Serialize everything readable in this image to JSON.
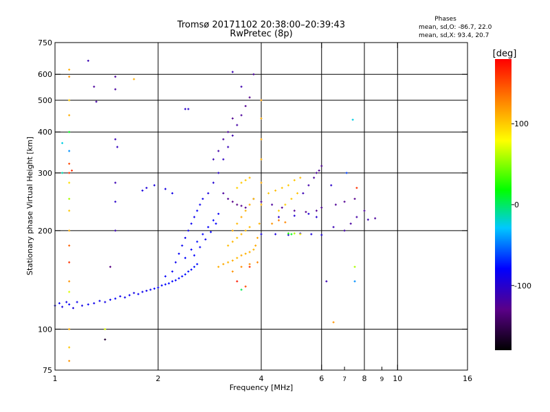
{
  "chart_data": {
    "type": "scatter",
    "title": "Tromsø 20171102 20:38:00–20:39:43",
    "subtitle": "RwPretec (8p)",
    "xlabel": "Frequency [MHz]",
    "ylabel": "Stationary phase Virtual Height [km]",
    "x_scale": "log",
    "y_scale": "log",
    "xlim": [
      1,
      16
    ],
    "ylim": [
      75,
      750
    ],
    "x_ticks": [
      1,
      2,
      4,
      6,
      8,
      10,
      16
    ],
    "x_minor_ticks": [
      7,
      9
    ],
    "y_ticks": [
      75,
      100,
      200,
      300,
      400,
      500,
      600,
      750
    ],
    "grid": true,
    "stats": {
      "heading": "Phases",
      "line_o": "mean, sd,O: -86.7, 22.0",
      "line_x": "mean, sd,X:  93.4, 20.7"
    },
    "colorbar": {
      "label": "[deg]",
      "range": [
        -180,
        180
      ],
      "ticks": [
        100,
        0,
        -100
      ],
      "colors": [
        "#000000",
        "#5a0088",
        "#0000ff",
        "#00c8ff",
        "#00ff00",
        "#ffff00",
        "#ff8000",
        "#ff0000"
      ]
    },
    "series": [
      {
        "points": [
          [
            1.0,
            118,
            -85
          ],
          [
            1.03,
            120,
            -82
          ],
          [
            1.05,
            117,
            -90
          ],
          [
            1.08,
            121,
            -86
          ],
          [
            1.1,
            119,
            -80
          ],
          [
            1.13,
            116,
            -92
          ],
          [
            1.16,
            121,
            -84
          ],
          [
            1.2,
            118,
            -88
          ],
          [
            1.25,
            119,
            -82
          ],
          [
            1.3,
            120,
            -86
          ],
          [
            1.35,
            122,
            -84
          ],
          [
            1.4,
            121,
            -88
          ],
          [
            1.45,
            123,
            -82
          ],
          [
            1.5,
            124,
            -80
          ],
          [
            1.55,
            126,
            -84
          ],
          [
            1.6,
            125,
            -86
          ],
          [
            1.65,
            127,
            -82
          ],
          [
            1.7,
            129,
            -88
          ],
          [
            1.75,
            128,
            -80
          ],
          [
            1.8,
            130,
            -84
          ],
          [
            1.85,
            131,
            -86
          ],
          [
            1.9,
            132,
            -82
          ],
          [
            1.95,
            133,
            -78
          ],
          [
            2.0,
            134,
            -80
          ],
          [
            2.05,
            136,
            -76
          ],
          [
            2.1,
            137,
            -78
          ],
          [
            2.15,
            138,
            -74
          ],
          [
            2.2,
            140,
            -76
          ],
          [
            2.25,
            141,
            -78
          ],
          [
            2.3,
            143,
            -74
          ],
          [
            2.35,
            145,
            -76
          ],
          [
            2.4,
            147,
            -72
          ],
          [
            2.45,
            150,
            -74
          ],
          [
            2.5,
            152,
            -76
          ],
          [
            2.55,
            155,
            -72
          ],
          [
            2.6,
            158,
            -74
          ],
          [
            2.1,
            145,
            -80
          ],
          [
            2.2,
            150,
            -82
          ],
          [
            2.25,
            160,
            -84
          ],
          [
            2.3,
            170,
            -80
          ],
          [
            2.35,
            180,
            -82
          ],
          [
            2.4,
            190,
            -84
          ],
          [
            2.45,
            200,
            -86
          ],
          [
            2.5,
            210,
            -82
          ],
          [
            2.55,
            220,
            -84
          ],
          [
            2.6,
            230,
            -80
          ],
          [
            2.65,
            240,
            -84
          ],
          [
            2.7,
            250,
            -86
          ],
          [
            2.4,
            165,
            -76
          ],
          [
            2.5,
            175,
            -78
          ],
          [
            2.6,
            185,
            -74
          ],
          [
            2.7,
            195,
            -78
          ],
          [
            2.8,
            205,
            -80
          ],
          [
            2.9,
            215,
            -76
          ],
          [
            2.55,
            168,
            -78
          ],
          [
            2.65,
            178,
            -80
          ],
          [
            2.75,
            188,
            -82
          ],
          [
            2.85,
            198,
            -78
          ],
          [
            2.95,
            210,
            -80
          ],
          [
            3.0,
            225,
            -82
          ],
          [
            2.2,
            260,
            -88
          ],
          [
            2.1,
            268,
            -90
          ],
          [
            1.95,
            275,
            -92
          ],
          [
            1.85,
            270,
            -94
          ],
          [
            1.8,
            265,
            -90
          ],
          [
            2.8,
            260,
            -92
          ],
          [
            2.9,
            280,
            -96
          ],
          [
            3.0,
            300,
            -100
          ],
          [
            3.1,
            330,
            -104
          ],
          [
            3.2,
            360,
            -108
          ],
          [
            3.3,
            390,
            -112
          ],
          [
            3.4,
            420,
            -116
          ],
          [
            3.5,
            450,
            -120
          ],
          [
            3.6,
            480,
            -124
          ],
          [
            3.7,
            510,
            -126
          ],
          [
            2.9,
            330,
            -110
          ],
          [
            3.0,
            350,
            -114
          ],
          [
            3.1,
            380,
            -118
          ],
          [
            3.2,
            400,
            -120
          ],
          [
            3.3,
            440,
            -124
          ],
          [
            3.1,
            260,
            -120
          ],
          [
            3.2,
            250,
            -124
          ],
          [
            3.3,
            245,
            -128
          ],
          [
            3.4,
            240,
            -130
          ],
          [
            3.5,
            238,
            -126
          ],
          [
            3.6,
            235,
            -124
          ],
          [
            3.8,
            250,
            -120
          ],
          [
            4.0,
            245,
            -118
          ],
          [
            4.3,
            240,
            -120
          ],
          [
            4.6,
            235,
            -122
          ],
          [
            5.0,
            230,
            -124
          ],
          [
            5.4,
            228,
            -126
          ],
          [
            5.8,
            230,
            -124
          ],
          [
            6.0,
            235,
            -122
          ],
          [
            4.5,
            220,
            -100
          ],
          [
            5.0,
            222,
            -96
          ],
          [
            5.5,
            225,
            -94
          ],
          [
            5.8,
            220,
            -98
          ],
          [
            5.3,
            260,
            -110
          ],
          [
            5.5,
            275,
            -114
          ],
          [
            5.7,
            290,
            -118
          ],
          [
            5.9,
            305,
            -122
          ],
          [
            6.0,
            315,
            -124
          ],
          [
            5.8,
            300,
            -120
          ],
          [
            4.0,
            195,
            -90
          ],
          [
            4.4,
            195,
            -92
          ],
          [
            4.8,
            194,
            -94
          ],
          [
            5.2,
            196,
            -90
          ],
          [
            5.6,
            195,
            -92
          ],
          [
            6.0,
            194,
            -94
          ],
          [
            6.5,
            205,
            -110
          ],
          [
            7.0,
            200,
            -115
          ],
          [
            7.3,
            210,
            -118
          ],
          [
            7.6,
            220,
            -116
          ],
          [
            8.0,
            230,
            -120
          ],
          [
            6.6,
            240,
            -122
          ],
          [
            7.0,
            245,
            -124
          ],
          [
            7.5,
            250,
            -126
          ],
          [
            6.4,
            275,
            -100
          ],
          [
            7.6,
            270,
            160
          ],
          [
            3.0,
            155,
            110
          ],
          [
            3.1,
            158,
            112
          ],
          [
            3.2,
            160,
            108
          ],
          [
            3.3,
            162,
            110
          ],
          [
            3.4,
            165,
            106
          ],
          [
            3.5,
            168,
            112
          ],
          [
            3.6,
            170,
            108
          ],
          [
            3.7,
            172,
            110
          ],
          [
            3.8,
            175,
            106
          ],
          [
            3.85,
            180,
            112
          ],
          [
            3.9,
            190,
            114
          ],
          [
            3.95,
            210,
            110
          ],
          [
            4.0,
            240,
            108
          ],
          [
            4.0,
            280,
            112
          ],
          [
            4.0,
            330,
            110
          ],
          [
            4.0,
            380,
            114
          ],
          [
            4.0,
            440,
            112
          ],
          [
            4.0,
            500,
            116
          ],
          [
            3.2,
            180,
            104
          ],
          [
            3.3,
            185,
            106
          ],
          [
            3.4,
            190,
            102
          ],
          [
            3.5,
            195,
            108
          ],
          [
            3.6,
            200,
            104
          ],
          [
            3.7,
            205,
            106
          ],
          [
            3.3,
            200,
            110
          ],
          [
            3.4,
            210,
            106
          ],
          [
            3.5,
            220,
            112
          ],
          [
            3.6,
            230,
            108
          ],
          [
            3.7,
            240,
            110
          ],
          [
            3.8,
            250,
            104
          ],
          [
            3.3,
            150,
            120
          ],
          [
            3.5,
            155,
            124
          ],
          [
            3.7,
            158,
            122
          ],
          [
            3.9,
            160,
            126
          ],
          [
            3.4,
            270,
            96
          ],
          [
            3.5,
            280,
            100
          ],
          [
            3.6,
            285,
            98
          ],
          [
            3.7,
            290,
            104
          ],
          [
            4.2,
            260,
            100
          ],
          [
            4.4,
            265,
            104
          ],
          [
            4.6,
            270,
            102
          ],
          [
            4.8,
            275,
            98
          ],
          [
            5.0,
            285,
            100
          ],
          [
            5.2,
            290,
            104
          ],
          [
            4.5,
            230,
            96
          ],
          [
            4.7,
            240,
            98
          ],
          [
            4.9,
            250,
            100
          ],
          [
            5.1,
            260,
            102
          ],
          [
            4.8,
            196,
            30
          ],
          [
            4.9,
            195,
            20
          ],
          [
            5.0,
            196,
            60
          ],
          [
            5.2,
            195,
            80
          ],
          [
            4.3,
            210,
            120
          ],
          [
            4.5,
            215,
            130
          ],
          [
            4.7,
            212,
            126
          ],
          [
            1.1,
            620,
            110
          ],
          [
            1.1,
            590,
            120
          ],
          [
            1.1,
            500,
            100
          ],
          [
            1.1,
            450,
            110
          ],
          [
            1.1,
            400,
            20
          ],
          [
            1.1,
            350,
            -40
          ],
          [
            1.1,
            320,
            150
          ],
          [
            1.1,
            300,
            160
          ],
          [
            1.1,
            280,
            90
          ],
          [
            1.1,
            250,
            60
          ],
          [
            1.1,
            230,
            100
          ],
          [
            1.1,
            200,
            110
          ],
          [
            1.1,
            180,
            140
          ],
          [
            1.1,
            160,
            160
          ],
          [
            1.1,
            140,
            120
          ],
          [
            1.1,
            130,
            70
          ],
          [
            1.1,
            100,
            110
          ],
          [
            1.1,
            88,
            100
          ],
          [
            1.1,
            80,
            120
          ],
          [
            1.12,
            305,
            160
          ],
          [
            1.05,
            370,
            -20
          ],
          [
            1.05,
            300,
            -10
          ],
          [
            1.25,
            660,
            -110
          ],
          [
            1.3,
            550,
            -120
          ],
          [
            1.32,
            495,
            -115
          ],
          [
            1.5,
            590,
            -120
          ],
          [
            1.5,
            540,
            -118
          ],
          [
            1.5,
            380,
            -110
          ],
          [
            1.52,
            360,
            -105
          ],
          [
            1.5,
            280,
            -110
          ],
          [
            1.5,
            245,
            -100
          ],
          [
            1.5,
            200,
            -110
          ],
          [
            1.45,
            155,
            -130
          ],
          [
            1.4,
            100,
            70
          ],
          [
            1.4,
            93,
            -160
          ],
          [
            1.7,
            580,
            110
          ],
          [
            2.4,
            470,
            -100
          ],
          [
            2.45,
            470,
            -100
          ],
          [
            3.3,
            610,
            -110
          ],
          [
            3.5,
            550,
            -112
          ],
          [
            3.8,
            600,
            -120
          ],
          [
            3.7,
            155,
            160
          ],
          [
            3.4,
            140,
            170
          ],
          [
            3.6,
            135,
            150
          ],
          [
            3.5,
            132,
            10
          ],
          [
            6.2,
            140,
            -110
          ],
          [
            6.5,
            105,
            120
          ],
          [
            7.5,
            140,
            -40
          ],
          [
            7.5,
            155,
            60
          ],
          [
            7.4,
            436,
            -20
          ],
          [
            7.1,
            300,
            -60
          ],
          [
            8.2,
            216,
            -110
          ],
          [
            8.6,
            218,
            -120
          ]
        ]
      }
    ]
  }
}
